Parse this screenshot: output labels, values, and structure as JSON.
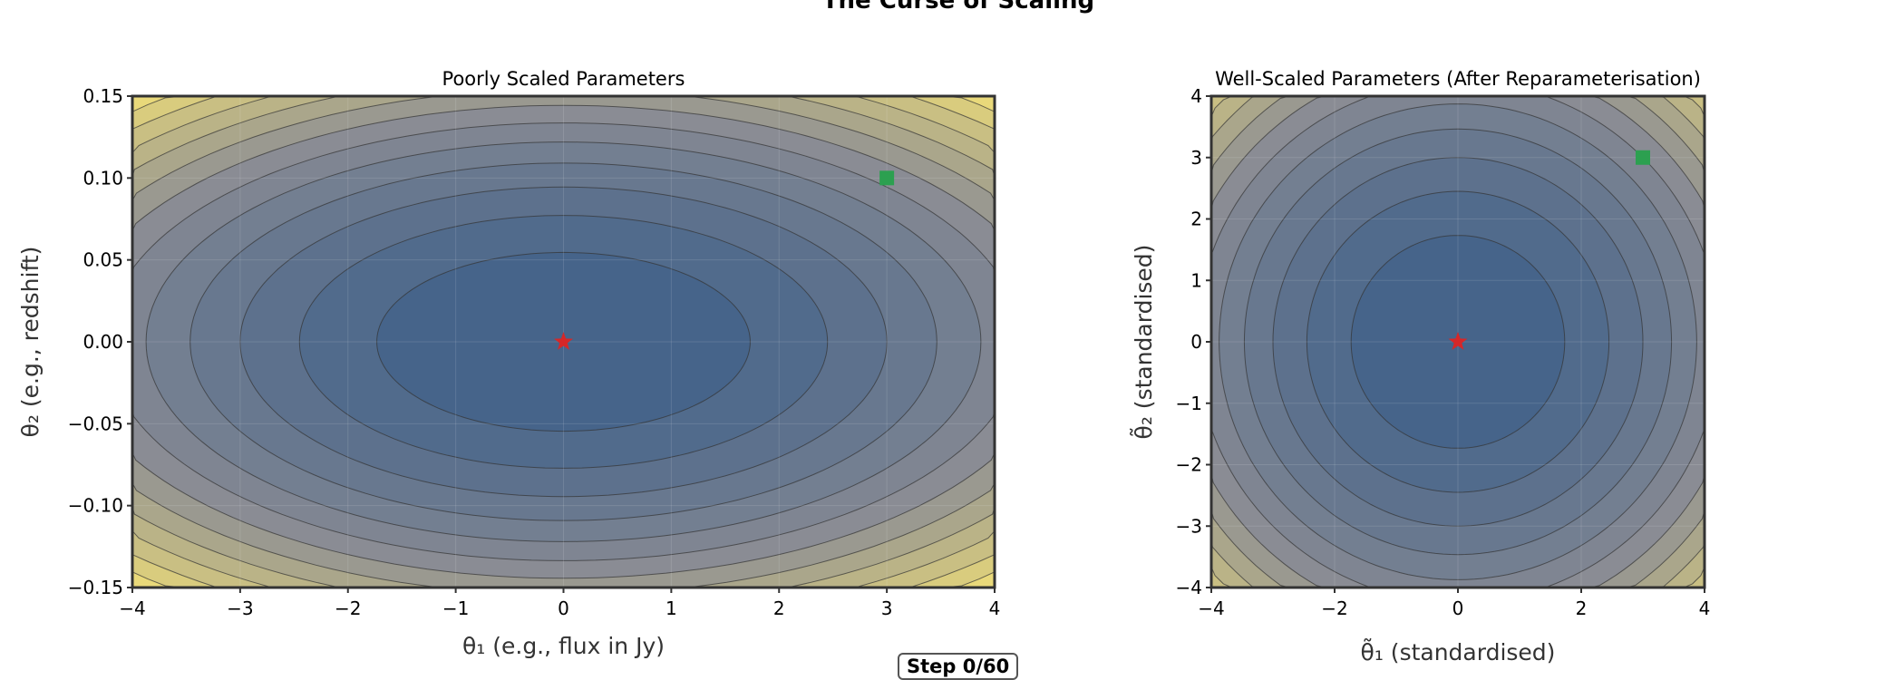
{
  "figure_title": "The Curse of Scaling",
  "step_label": "Step 0/60",
  "colors": {
    "center": "#46648a",
    "mid": "#8a8c94",
    "edge": "#e9d97a",
    "contour_line": "#333333",
    "optimum": "#d62728",
    "current": "#2ca050"
  },
  "chart_data": [
    {
      "type": "contour",
      "title": "Poorly Scaled Parameters",
      "xlabel": "θ₁ (e.g., flux in Jy)",
      "ylabel": "θ₂ (e.g., redshift)",
      "xlim": [
        -4,
        4
      ],
      "ylim": [
        -0.15,
        0.15
      ],
      "xticks": [
        "−4",
        "−3",
        "−2",
        "−1",
        "0",
        "1",
        "2",
        "3",
        "4"
      ],
      "xtick_values": [
        -4,
        -3,
        -2,
        -1,
        0,
        1,
        2,
        3,
        4
      ],
      "yticks": [
        "−0.15",
        "−0.10",
        "−0.05",
        "0.00",
        "0.05",
        "0.10",
        "0.15"
      ],
      "ytick_values": [
        -0.15,
        -0.1,
        -0.05,
        0,
        0.05,
        0.1,
        0.15
      ],
      "y_scale": 0.0315,
      "grid": true,
      "optimum": {
        "x": 0,
        "y": 0,
        "marker": "star"
      },
      "current_point": {
        "x": 3,
        "y": 0.1,
        "marker": "square"
      }
    },
    {
      "type": "contour",
      "title": "Well-Scaled Parameters (After Reparameterisation)",
      "xlabel": "θ̃₁ (standardised)",
      "ylabel": "θ̃₂ (standardised)",
      "xlim": [
        -4,
        4
      ],
      "ylim": [
        -4,
        4
      ],
      "xticks": [
        "−4",
        "−2",
        "0",
        "2",
        "4"
      ],
      "xtick_values": [
        -4,
        -2,
        0,
        2,
        4
      ],
      "yticks": [
        "−4",
        "−3",
        "−2",
        "−1",
        "0",
        "1",
        "2",
        "3",
        "4"
      ],
      "ytick_values": [
        -4,
        -3,
        -2,
        -1,
        0,
        1,
        2,
        3,
        4
      ],
      "y_scale": 1,
      "grid": true,
      "optimum": {
        "x": 0,
        "y": 0,
        "marker": "star"
      },
      "current_point": {
        "x": 3,
        "y": 3,
        "marker": "square"
      }
    }
  ]
}
